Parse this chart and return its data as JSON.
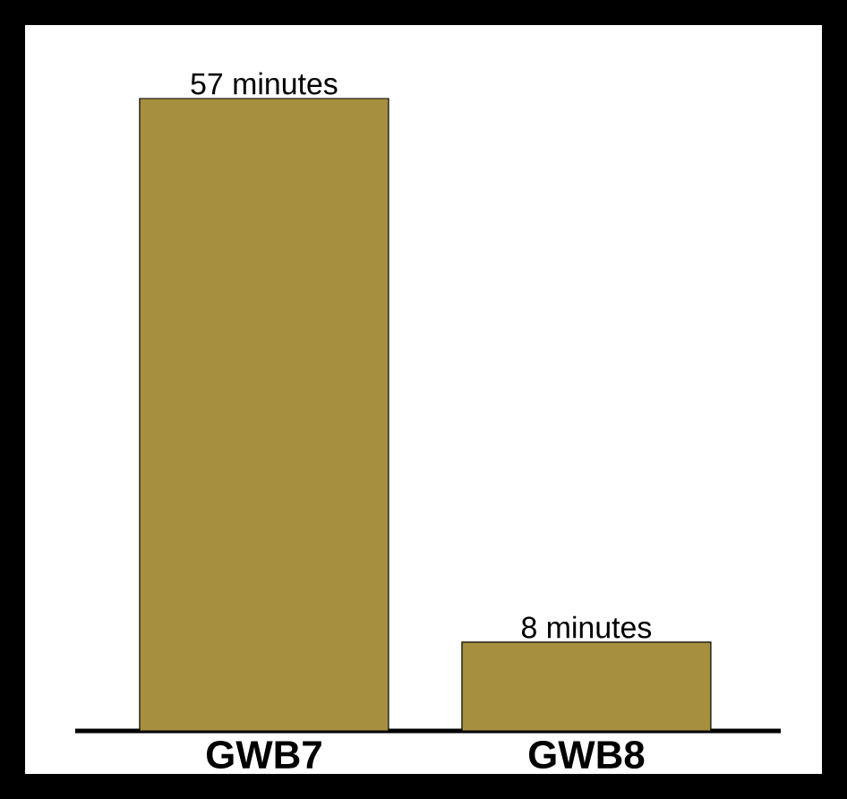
{
  "chart_data": {
    "type": "bar",
    "categories": [
      "GWB7",
      "GWB8"
    ],
    "values": [
      57,
      8
    ],
    "value_labels": [
      "57 minutes",
      "8 minutes"
    ],
    "color": "#a68f3e"
  }
}
